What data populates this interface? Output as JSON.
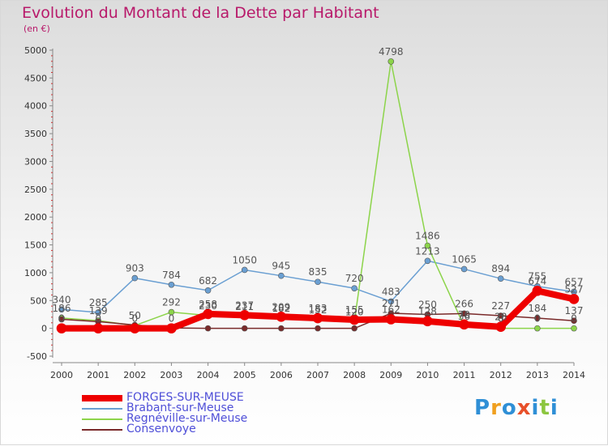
{
  "title": "Evolution du Montant de la Dette par Habitant",
  "subtitle": "(en €)",
  "logo": {
    "text": "Proxiti",
    "colors": [
      "#2f8fd6",
      "#f0a020",
      "#2f8fd6",
      "#e8502a",
      "#2f8fd6",
      "#8cc63f",
      "#2f8fd6"
    ]
  },
  "chart_data": {
    "type": "line",
    "title": "Evolution du Montant de la Dette par Habitant",
    "ylabel": "(en €)",
    "x": [
      "2000",
      "2001",
      "2002",
      "2003",
      "2004",
      "2005",
      "2006",
      "2007",
      "2008",
      "2009",
      "2010",
      "2011",
      "2012",
      "2013",
      "2014"
    ],
    "ylim": [
      -500,
      5000
    ],
    "yticks": [
      -500,
      0,
      500,
      1000,
      1500,
      2000,
      2500,
      3000,
      3500,
      4000,
      4500,
      5000
    ],
    "grid": false,
    "legend": "bottom-left",
    "series": [
      {
        "name": "FORGES-SUR-MEUSE",
        "color": "#ee0000",
        "width": 8,
        "values": [
          0,
          0,
          0,
          0,
          258,
          237,
          209,
          183,
          155,
          162,
          128,
          70,
          28,
          674,
          527
        ],
        "labels": [
          "0",
          "0",
          "0",
          "0",
          "258",
          "237",
          "209",
          "183",
          "155",
          "162",
          "128",
          "70",
          "28",
          "674",
          "527"
        ]
      },
      {
        "name": "Brabant-sur-Meuse",
        "color": "#6a9fd2",
        "width": 1.5,
        "values": [
          340,
          285,
          903,
          784,
          682,
          1050,
          945,
          835,
          720,
          483,
          1213,
          1065,
          894,
          755,
          657
        ],
        "labels": [
          "340",
          "285",
          "903",
          "784",
          "682",
          "1050",
          "945",
          "835",
          "720",
          "483",
          "1213",
          "1065",
          "894",
          "755",
          "657"
        ]
      },
      {
        "name": "Regnéville-sur-Meuse",
        "color": "#8cd44a",
        "width": 1.5,
        "values": [
          186,
          139,
          50,
          292,
          230,
          211,
          182,
          152,
          120,
          4798,
          1486,
          36,
          0,
          0,
          0
        ],
        "labels": [
          "186",
          "139",
          "50",
          "292",
          "230",
          "211",
          "182",
          "152",
          "120",
          "4798",
          "1486",
          "36",
          "0",
          "0",
          "0"
        ]
      },
      {
        "name": "Consenvoye",
        "color": "#7a2a2a",
        "width": 1.5,
        "values": [
          162,
          120,
          60,
          7,
          0,
          0,
          0,
          0,
          0,
          271,
          250,
          266,
          227,
          184,
          137
        ],
        "labels": [
          "",
          "",
          "",
          "",
          "",
          "",
          "",
          "",
          "",
          "271",
          "250",
          "266",
          "227",
          "184",
          "137"
        ]
      }
    ]
  }
}
